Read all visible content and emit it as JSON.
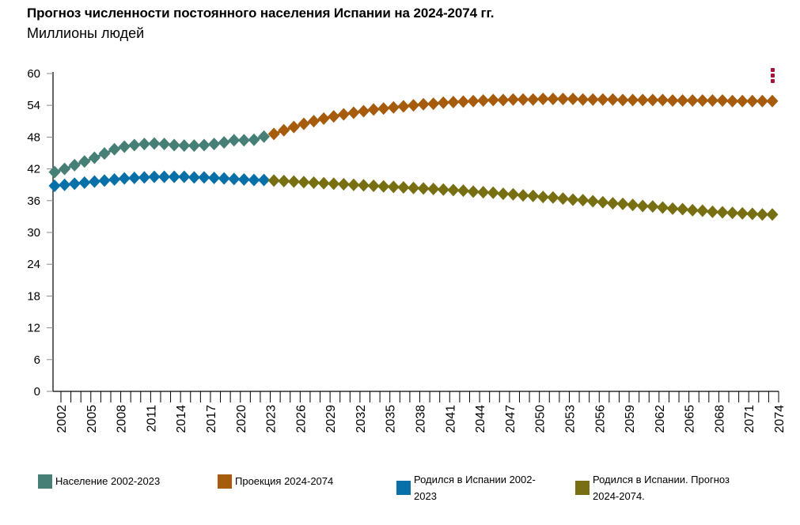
{
  "header": {
    "title": "Прогноз численности постоянного населения Испании на 2024-2074 гг.",
    "subtitle": "Миллионы людей"
  },
  "menu": {
    "icon": "kebab-menu-icon",
    "color": "#a31638"
  },
  "legend": [
    {
      "label": "Население 2002-2023",
      "color": "#467f75"
    },
    {
      "label": "Проекция 2024-2074",
      "color": "#a65c0c"
    },
    {
      "label": "Родился в Испании 2002-2023",
      "color": "#0870a8"
    },
    {
      "label": "Родился в Испании. Прогноз 2024-2074.",
      "color": "#776f12"
    }
  ],
  "chart_data": {
    "type": "line",
    "title": "Прогноз численности постоянного населения Испании на 2024-2074 гг.",
    "subtitle": "Миллионы людей",
    "xlabel": "",
    "ylabel": "Миллионы людей",
    "ylim": [
      0,
      60
    ],
    "yticks": [
      0,
      6,
      12,
      18,
      24,
      30,
      36,
      42,
      48,
      54,
      60
    ],
    "xlim": [
      2002,
      2074
    ],
    "xtick_labels": [
      "2002",
      "2005",
      "2008",
      "2011",
      "2014",
      "2017",
      "2020",
      "2023",
      "2026",
      "2029",
      "2032",
      "2035",
      "2038",
      "2041",
      "2044",
      "2047",
      "2050",
      "2053",
      "2056",
      "2059",
      "2062",
      "2065",
      "2068",
      "2071",
      "2074"
    ],
    "grid": false,
    "marker": "diamond",
    "legend_position": "bottom",
    "series": [
      {
        "name": "Население 2002-2023",
        "color": "#467f75",
        "x_start": 2002,
        "values": [
          41.4,
          42.0,
          42.7,
          43.4,
          44.1,
          44.9,
          45.7,
          46.2,
          46.5,
          46.7,
          46.8,
          46.7,
          46.5,
          46.4,
          46.4,
          46.5,
          46.7,
          47.0,
          47.4,
          47.4,
          47.5,
          48.1
        ]
      },
      {
        "name": "Проекция 2024-2074",
        "color": "#a65c0c",
        "x_start": 2024,
        "values": [
          48.6,
          49.3,
          49.9,
          50.5,
          51.0,
          51.5,
          51.9,
          52.3,
          52.6,
          52.9,
          53.2,
          53.4,
          53.6,
          53.8,
          54.0,
          54.2,
          54.3,
          54.5,
          54.6,
          54.7,
          54.8,
          54.9,
          55.0,
          55.0,
          55.1,
          55.1,
          55.1,
          55.2,
          55.2,
          55.2,
          55.2,
          55.1,
          55.1,
          55.1,
          55.1,
          55.0,
          55.0,
          55.0,
          55.0,
          55.0,
          54.9,
          54.9,
          54.9,
          54.9,
          54.9,
          54.9,
          54.8,
          54.8,
          54.8,
          54.8,
          54.8
        ]
      },
      {
        "name": "Родился в Испании 2002-2023",
        "color": "#0870a8",
        "x_start": 2002,
        "values": [
          38.8,
          39.0,
          39.2,
          39.4,
          39.6,
          39.8,
          40.0,
          40.2,
          40.3,
          40.4,
          40.5,
          40.5,
          40.5,
          40.5,
          40.4,
          40.4,
          40.3,
          40.2,
          40.1,
          40.0,
          39.9,
          39.9
        ]
      },
      {
        "name": "Родился в Испании. Прогноз 2024-2074.",
        "color": "#776f12",
        "x_start": 2024,
        "values": [
          39.8,
          39.7,
          39.6,
          39.5,
          39.4,
          39.3,
          39.2,
          39.1,
          39.0,
          38.9,
          38.8,
          38.7,
          38.6,
          38.5,
          38.4,
          38.3,
          38.2,
          38.1,
          38.0,
          37.9,
          37.7,
          37.6,
          37.5,
          37.3,
          37.2,
          37.0,
          36.9,
          36.7,
          36.6,
          36.4,
          36.2,
          36.1,
          35.9,
          35.7,
          35.5,
          35.4,
          35.2,
          35.0,
          34.9,
          34.7,
          34.5,
          34.4,
          34.2,
          34.1,
          33.9,
          33.8,
          33.7,
          33.6,
          33.5,
          33.4,
          33.4
        ]
      }
    ]
  }
}
